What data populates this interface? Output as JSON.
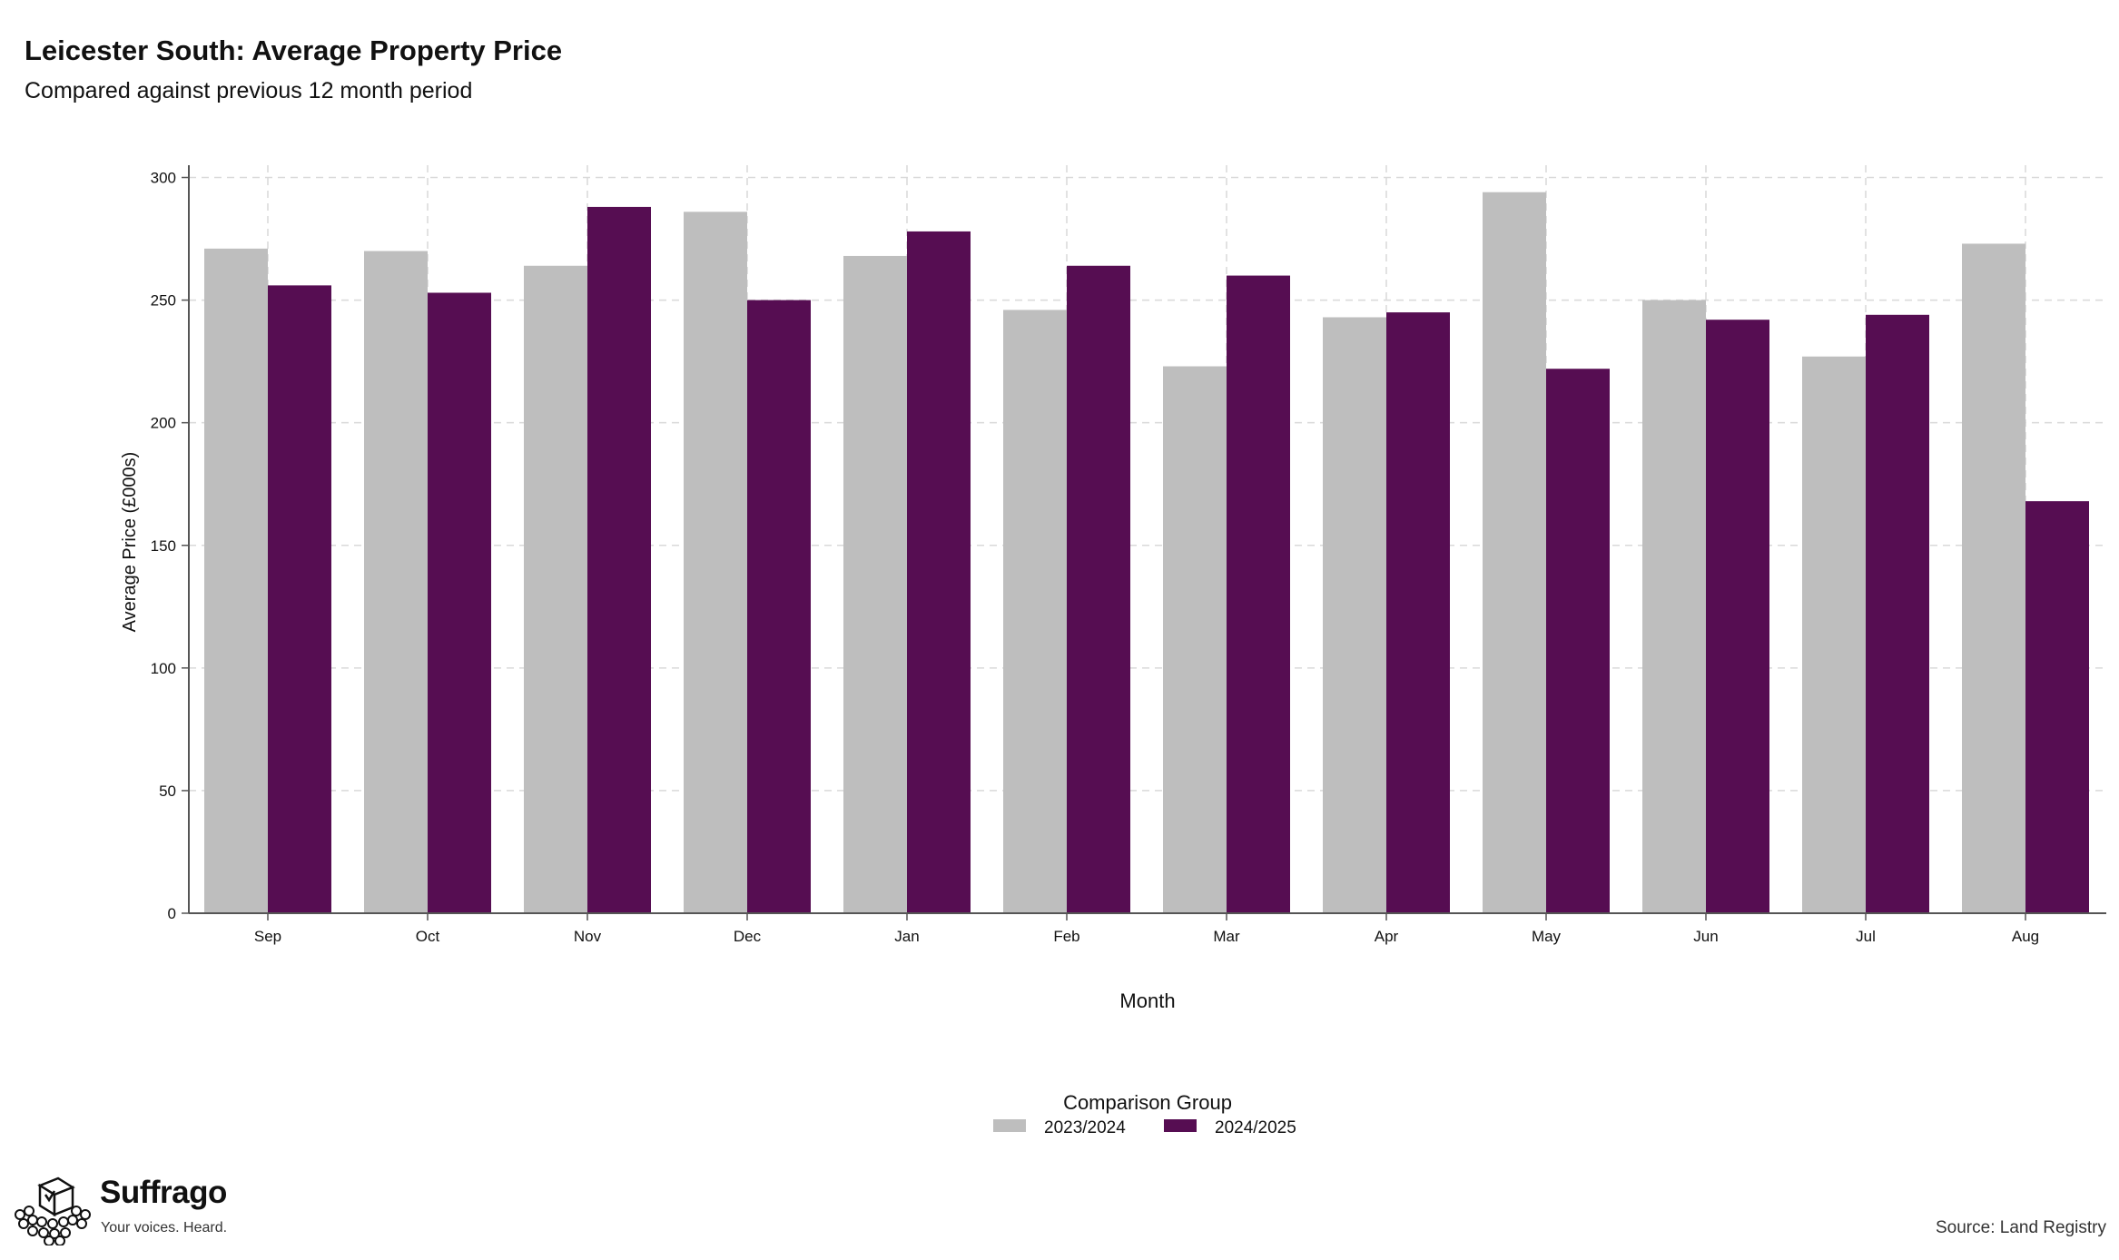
{
  "title": "Leicester South: Average Property Price",
  "subtitle": "Compared against previous 12 month period",
  "source": "Source: Land Registry",
  "logo": {
    "name": "Suffrago",
    "tagline": "Your voices. Heard."
  },
  "chart_data": {
    "type": "bar",
    "title": "Leicester South: Average Property Price",
    "subtitle": "Compared against previous 12 month period",
    "xlabel": "Month",
    "ylabel": "Average Price (£000s)",
    "ylim": [
      0,
      305
    ],
    "yticks": [
      0,
      50,
      100,
      150,
      200,
      250,
      300
    ],
    "grid": true,
    "legend_title": "Comparison Group",
    "legend_position": "bottom-center",
    "categories": [
      "Sep",
      "Oct",
      "Nov",
      "Dec",
      "Jan",
      "Feb",
      "Mar",
      "Apr",
      "May",
      "Jun",
      "Jul",
      "Aug"
    ],
    "series": [
      {
        "name": "2023/2024",
        "color": "#bebebe",
        "values": [
          271,
          270,
          264,
          286,
          268,
          246,
          223,
          243,
          294,
          250,
          227,
          273
        ]
      },
      {
        "name": "2024/2025",
        "color": "#560d52",
        "values": [
          256,
          253,
          288,
          250,
          278,
          264,
          260,
          245,
          222,
          242,
          244,
          168
        ]
      }
    ]
  }
}
